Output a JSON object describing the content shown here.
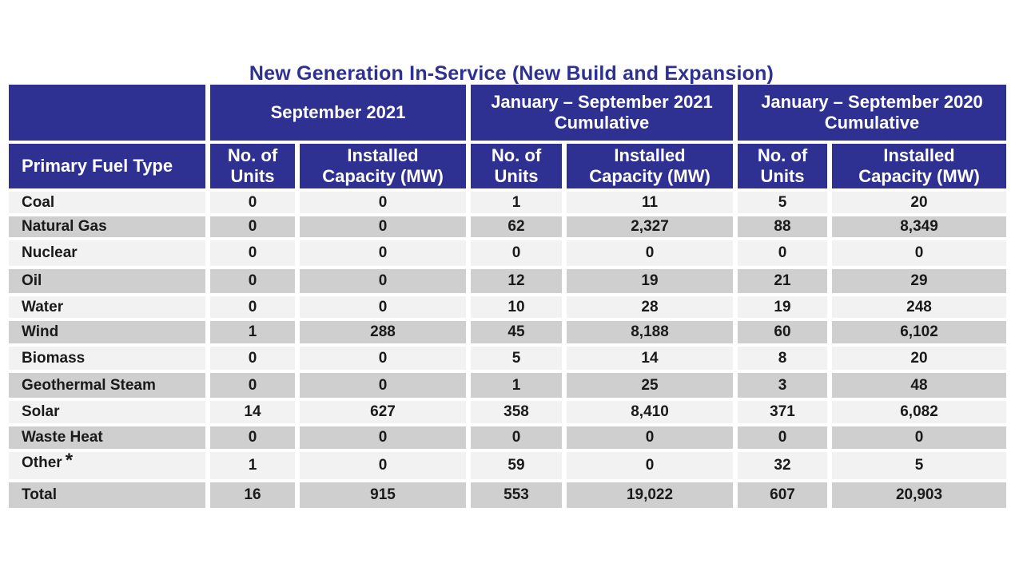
{
  "chart_data": {
    "type": "table",
    "title": "New Generation In-Service (New Build and Expansion)",
    "period_headers": [
      "September 2021",
      "January – September 2021\nCumulative",
      "January – September 2020\nCumulative"
    ],
    "row_header": "Primary Fuel Type",
    "sub_headers": [
      "No. of\nUnits",
      "Installed\nCapacity (MW)"
    ],
    "rows": [
      {
        "fuel": "Coal",
        "note": "",
        "values": [
          "0",
          "0",
          "1",
          "11",
          "5",
          "20"
        ]
      },
      {
        "fuel": "Natural Gas",
        "note": "",
        "values": [
          "0",
          "0",
          "62",
          "2,327",
          "88",
          "8,349"
        ]
      },
      {
        "fuel": "Nuclear",
        "note": "",
        "values": [
          "0",
          "0",
          "0",
          "0",
          "0",
          "0"
        ]
      },
      {
        "fuel": "Oil",
        "note": "",
        "values": [
          "0",
          "0",
          "12",
          "19",
          "21",
          "29"
        ]
      },
      {
        "fuel": "Water",
        "note": "",
        "values": [
          "0",
          "0",
          "10",
          "28",
          "19",
          "248"
        ]
      },
      {
        "fuel": "Wind",
        "note": "",
        "values": [
          "1",
          "288",
          "45",
          "8,188",
          "60",
          "6,102"
        ]
      },
      {
        "fuel": "Biomass",
        "note": "",
        "values": [
          "0",
          "0",
          "5",
          "14",
          "8",
          "20"
        ]
      },
      {
        "fuel": "Geothermal Steam",
        "note": "",
        "values": [
          "0",
          "0",
          "1",
          "25",
          "3",
          "48"
        ]
      },
      {
        "fuel": "Solar",
        "note": "",
        "values": [
          "14",
          "627",
          "358",
          "8,410",
          "371",
          "6,082"
        ]
      },
      {
        "fuel": "Waste Heat",
        "note": "",
        "values": [
          "0",
          "0",
          "0",
          "0",
          "0",
          "0"
        ]
      },
      {
        "fuel": "Other",
        "note": "*",
        "values": [
          "1",
          "0",
          "59",
          "0",
          "32",
          "5"
        ]
      }
    ],
    "total": {
      "fuel": "Total",
      "values": [
        "16",
        "915",
        "553",
        "19,022",
        "607",
        "20,903"
      ]
    },
    "colors": {
      "header": "#2e3192",
      "title": "#2e3192",
      "row_light": "#f2f2f2",
      "row_dark": "#cfcfcf"
    }
  }
}
